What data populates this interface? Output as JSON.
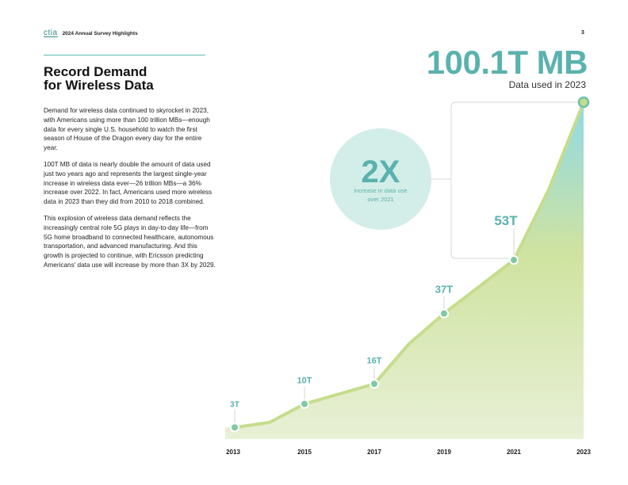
{
  "header": {
    "logo": "ctia",
    "title": "2024 Annual Survey Highlights",
    "page_number": "3"
  },
  "heading": {
    "line1": "Record Demand",
    "line2": "for Wireless Data"
  },
  "body": {
    "p1": "Demand for wireless data continued to skyrocket in 2023, with Americans using more than 100 trillion MBs—enough data for every single U.S. household to watch the first season of House of the Dragon every day for the entire year.",
    "p2": "100T MB of data is nearly double the amount of data used just two years ago and represents the largest single-year increase in wireless data ever—26 trillion MBs—a 36% increase over 2022. In fact, Americans used more wireless data in 2023 than they did from 2010 to 2018 combined.",
    "p3": "This explosion of wireless data demand reflects the increasingly central role 5G plays in day-to-day life—from 5G home broadband to connected healthcare, autonomous transportation, and advanced manufacturing. And this growth is projected to continue, with Ericsson predicting Americans' data use will increase by more than 3X by 2029."
  },
  "highlight": {
    "value": "100.1T MB",
    "caption": "Data used in 2023"
  },
  "bubble": {
    "value": "2X",
    "line1": "increase in data use",
    "line2": "over 2021"
  },
  "colors": {
    "teal": "#5ab2ae",
    "line": "#c5dd8c",
    "marker": "#7fc9a4",
    "bubble": "#d3ede8",
    "bracket": "#d9d9d9"
  },
  "chart_data": {
    "type": "area",
    "title": "",
    "xlabel": "",
    "ylabel": "",
    "unit": "trillion MB",
    "x": [
      2013,
      2014,
      2015,
      2016,
      2017,
      2018,
      2019,
      2020,
      2021,
      2022,
      2023
    ],
    "values": [
      3,
      4.5,
      10,
      13,
      16,
      28,
      37,
      45,
      53,
      74,
      100.1
    ],
    "xticks": [
      "2013",
      "2015",
      "2017",
      "2019",
      "2021",
      "2023"
    ],
    "xlim": [
      2013,
      2023
    ],
    "ylim": [
      0,
      100.1
    ],
    "markers": [
      {
        "x": 2013,
        "y": 3,
        "label": "3T"
      },
      {
        "x": 2015,
        "y": 10,
        "label": "10T"
      },
      {
        "x": 2017,
        "y": 16,
        "label": "16T"
      },
      {
        "x": 2019,
        "y": 37,
        "label": "37T"
      },
      {
        "x": 2021,
        "y": 53,
        "label": "53T"
      },
      {
        "x": 2023,
        "y": 100.1,
        "label": ""
      }
    ],
    "grid": false,
    "legend": "none"
  }
}
